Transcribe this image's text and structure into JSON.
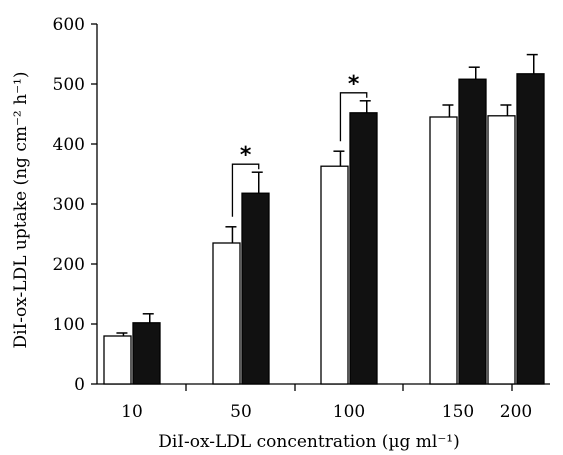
{
  "chart_data": {
    "type": "bar",
    "title": "",
    "xlabel": "DiI-ox-LDL concentration (µg ml⁻¹)",
    "ylabel": "DiI-ox-LDL uptake (ng cm⁻² h⁻¹)",
    "categories": [
      "10",
      "50",
      "100",
      "150",
      "200"
    ],
    "ylim": [
      0,
      600
    ],
    "yticks": [
      0,
      100,
      200,
      300,
      400,
      500,
      600
    ],
    "grid": false,
    "series": [
      {
        "fill": "#ffffff",
        "values": [
          80,
          235,
          363,
          445,
          447
        ],
        "errors": [
          5,
          27,
          25,
          20,
          18
        ]
      },
      {
        "fill": "#111111",
        "values": [
          102,
          318,
          452,
          508,
          517
        ],
        "errors": [
          15,
          35,
          20,
          20,
          32
        ]
      }
    ],
    "annotations": [
      {
        "category": "50",
        "text": "*"
      },
      {
        "category": "100",
        "text": "*"
      }
    ]
  }
}
